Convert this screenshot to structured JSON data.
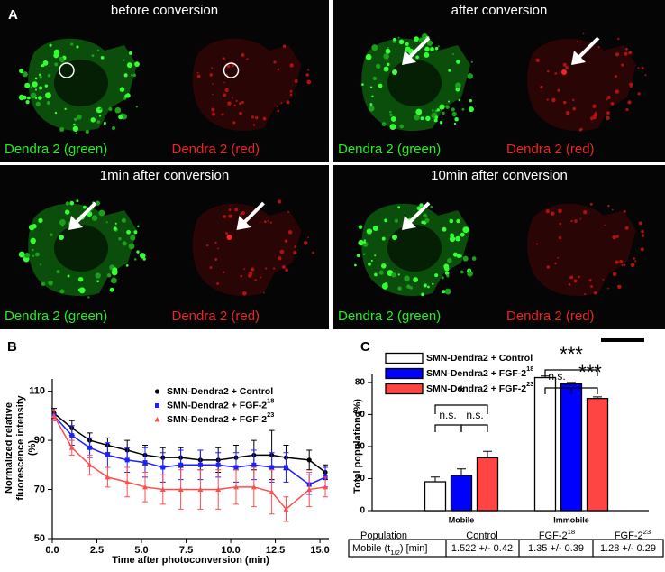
{
  "panel_a": {
    "label": "A",
    "images": [
      {
        "title": "before conversion",
        "left_label": "Dendra 2 (green)",
        "right_label": "Dendra 2 (red)"
      },
      {
        "title": "after conversion",
        "left_label": "Dendra 2 (green)",
        "right_label": "Dendra 2 (red)"
      },
      {
        "title": "1min after conversion",
        "left_label": "Dendra 2 (green)",
        "right_label": "Dendra 2 (red)"
      },
      {
        "title": "10min after conversion",
        "left_label": "Dendra 2 (green)",
        "right_label": "Dendra 2 (red)"
      }
    ]
  },
  "panel_b": {
    "label": "B",
    "chart_data": {
      "type": "line",
      "ylabel_lines": [
        "Normalized relative",
        "fluorescence intensity",
        "(%)"
      ],
      "xlabel": "Time after photoconversion (min)",
      "x": [
        0.1,
        1.1,
        2.1,
        3.1,
        4.2,
        5.2,
        6.2,
        7.2,
        8.3,
        9.3,
        10.3,
        11.3,
        12.3,
        13.1,
        14.4,
        15.3
      ],
      "xlim": [
        0,
        15.5
      ],
      "xticks": [
        {
          "value": 0,
          "label": "0.0"
        },
        2.5,
        {
          "value": 5,
          "label": "5.0"
        },
        7.5,
        {
          "value": 10,
          "label": "10.0"
        },
        12.5,
        {
          "value": 15,
          "label": "15.0"
        }
      ],
      "ylim": [
        50,
        115
      ],
      "yticks": [
        50,
        70,
        90,
        110
      ],
      "series": [
        {
          "name": "SMN-Dendra2 + Control",
          "color": "#000000",
          "marker": "circle",
          "values": [
            101,
            95,
            90,
            88,
            86,
            84,
            83,
            83,
            82,
            82,
            83,
            84,
            84,
            83,
            82,
            77
          ],
          "errors": [
            2,
            3,
            3,
            3,
            4,
            4,
            4,
            4,
            4,
            5,
            5,
            6,
            10,
            5,
            4,
            3
          ]
        },
        {
          "name": "SMN-Dendra2 + FGF-2",
          "name_sup": "18",
          "color": "#1f1fff",
          "marker": "square",
          "values": [
            100,
            92,
            87,
            84,
            82,
            81,
            79,
            80,
            80,
            80,
            79,
            80,
            79,
            79,
            72,
            75
          ],
          "errors": [
            2,
            4,
            4,
            5,
            5,
            6,
            6,
            6,
            6,
            5,
            6,
            6,
            6,
            6,
            4,
            4
          ]
        },
        {
          "name": "SMN-Dendra2 + FGF-2",
          "name_sup": "23",
          "color": "#ff4d4d",
          "marker": "triangle",
          "values": [
            100,
            87,
            80,
            75,
            73,
            71,
            70,
            70,
            70,
            70,
            71,
            71,
            69,
            62,
            70,
            71
          ],
          "errors": [
            2,
            3,
            4,
            4,
            6,
            6,
            6,
            8,
            8,
            8,
            7,
            8,
            9,
            5,
            7,
            4
          ]
        }
      ]
    }
  },
  "panel_c": {
    "label": "C",
    "chart_data": {
      "type": "bar",
      "ylabel": "Total population (%)",
      "categories": [
        "Mobile",
        "Immobile"
      ],
      "ylim": [
        0,
        85
      ],
      "yticks": [
        0,
        20,
        40,
        60,
        80
      ],
      "series": [
        {
          "name": "SMN-Dendra2 + Control",
          "color": "#ffffff",
          "values": [
            18,
            83
          ],
          "errors": [
            3,
            1
          ]
        },
        {
          "name": "SMN-Dendra2 + FGF-2",
          "name_sup": "18",
          "color": "#0000ff",
          "values": [
            22,
            79
          ],
          "errors": [
            4,
            1
          ]
        },
        {
          "name": "SMN-Dendra2 + FGF-2",
          "name_sup": "23",
          "color": "#ff4444",
          "values": [
            33,
            70
          ],
          "errors": [
            4,
            1
          ]
        }
      ],
      "annotations": [
        "*",
        "n.s.",
        "n.s.",
        "***",
        "n.s.",
        "***"
      ]
    },
    "table": {
      "header": [
        {
          "text": "Population"
        },
        {
          "text": "Control"
        },
        {
          "text": "FGF-2",
          "sup": "18"
        },
        {
          "text": "FGF-2",
          "sup": "23"
        }
      ],
      "row_label": {
        "text": "Mobile (t",
        "sub": "1/2",
        "tail": ") [min]"
      },
      "row": [
        "1.522 +/- 0.42",
        "1.35 +/- 0.39",
        "1.28 +/- 0.29"
      ]
    }
  }
}
